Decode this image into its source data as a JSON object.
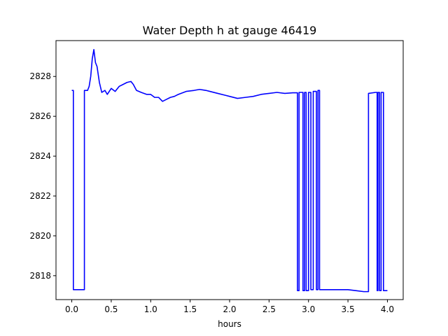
{
  "chart_data": {
    "type": "line",
    "title": "Water Depth h at gauge 46419",
    "xlabel": "hours",
    "ylabel": "",
    "xlim": [
      -0.2,
      4.2
    ],
    "ylim": [
      2816.8,
      2829.8
    ],
    "xticks": [
      0.0,
      0.5,
      1.0,
      1.5,
      2.0,
      2.5,
      3.0,
      3.5,
      4.0
    ],
    "xtick_labels": [
      "0.0",
      "0.5",
      "1.0",
      "1.5",
      "2.0",
      "2.5",
      "3.0",
      "3.5",
      "4.0"
    ],
    "yticks": [
      2818,
      2820,
      2822,
      2824,
      2826,
      2828
    ],
    "ytick_labels": [
      "2818",
      "2820",
      "2822",
      "2824",
      "2826",
      "2828"
    ],
    "grid": false,
    "series": [
      {
        "color": "#0000ff",
        "x": [
          0.0,
          0.02,
          0.02,
          0.16,
          0.16,
          0.2,
          0.22,
          0.24,
          0.26,
          0.28,
          0.3,
          0.32,
          0.35,
          0.38,
          0.42,
          0.45,
          0.5,
          0.55,
          0.6,
          0.65,
          0.7,
          0.75,
          0.78,
          0.82,
          0.88,
          0.95,
          1.0,
          1.05,
          1.1,
          1.15,
          1.2,
          1.25,
          1.3,
          1.35,
          1.45,
          1.55,
          1.62,
          1.7,
          1.75,
          1.85,
          1.95,
          2.0,
          2.1,
          2.2,
          2.3,
          2.4,
          2.5,
          2.6,
          2.7,
          2.8,
          2.86,
          2.86,
          2.88,
          2.88,
          2.93,
          2.93,
          2.95,
          2.95,
          2.97,
          2.97,
          3.0,
          3.0,
          3.03,
          3.03,
          3.06,
          3.06,
          3.1,
          3.1,
          3.12,
          3.12,
          3.14,
          3.14,
          3.16,
          3.3,
          3.4,
          3.5,
          3.6,
          3.7,
          3.76,
          3.76,
          3.85,
          3.87,
          3.87,
          3.88,
          3.88,
          3.9,
          3.9,
          3.92,
          3.92,
          3.95,
          3.95,
          3.96,
          3.96,
          4.0
        ],
        "y": [
          2827.3,
          2827.3,
          2817.3,
          2817.3,
          2827.3,
          2827.3,
          2827.5,
          2828.0,
          2828.9,
          2829.35,
          2828.7,
          2828.5,
          2827.7,
          2827.2,
          2827.3,
          2827.1,
          2827.4,
          2827.25,
          2827.5,
          2827.6,
          2827.7,
          2827.75,
          2827.6,
          2827.3,
          2827.2,
          2827.1,
          2827.1,
          2826.95,
          2826.95,
          2826.75,
          2826.85,
          2826.95,
          2827.0,
          2827.1,
          2827.25,
          2827.3,
          2827.35,
          2827.3,
          2827.25,
          2827.15,
          2827.05,
          2827.0,
          2826.9,
          2826.95,
          2827.0,
          2827.1,
          2827.15,
          2827.2,
          2827.15,
          2827.18,
          2827.18,
          2817.25,
          2817.25,
          2827.2,
          2827.2,
          2817.25,
          2817.25,
          2827.2,
          2827.2,
          2817.25,
          2817.25,
          2827.2,
          2827.2,
          2817.3,
          2817.3,
          2827.25,
          2827.25,
          2817.3,
          2817.3,
          2827.3,
          2827.3,
          2817.3,
          2817.3,
          2817.3,
          2817.3,
          2817.3,
          2817.25,
          2817.2,
          2817.2,
          2827.15,
          2827.2,
          2827.2,
          2817.25,
          2817.25,
          2827.2,
          2827.2,
          2817.25,
          2817.25,
          2827.2,
          2827.2,
          2817.25,
          2817.25,
          2817.25,
          2817.25
        ]
      }
    ]
  }
}
